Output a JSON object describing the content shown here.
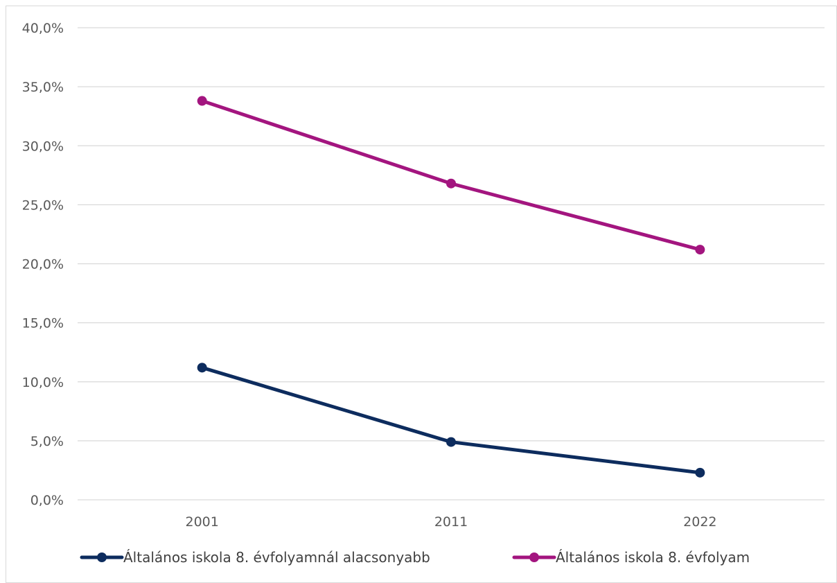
{
  "chart_data": {
    "type": "line",
    "title": "",
    "xlabel": "",
    "ylabel": "",
    "categories": [
      "2001",
      "2011",
      "2022"
    ],
    "ylim": [
      0,
      40
    ],
    "y_ticks": [
      0,
      5,
      10,
      15,
      20,
      25,
      30,
      35,
      40
    ],
    "y_tick_labels": [
      "0,0%",
      "5,0%",
      "10,0%",
      "15,0%",
      "20,0%",
      "25,0%",
      "30,0%",
      "35,0%",
      "40,0%"
    ],
    "grid": "horizontal",
    "legend_position": "bottom",
    "series": [
      {
        "name": "Általános iskola 8. évfolyamnál alacsonyabb",
        "values": [
          11.2,
          4.9,
          2.3
        ],
        "color": "#0d2c5e"
      },
      {
        "name": "Általános iskola 8. évfolyam",
        "values": [
          33.8,
          26.8,
          21.2
        ],
        "color": "#a3157f"
      }
    ]
  }
}
